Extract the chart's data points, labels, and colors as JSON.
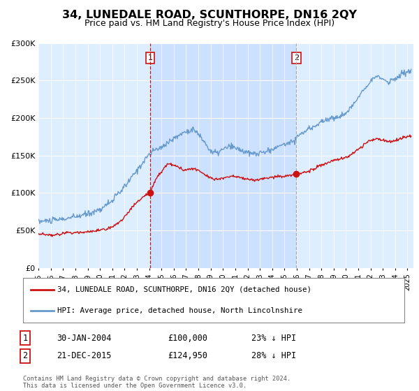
{
  "title": "34, LUNEDALE ROAD, SCUNTHORPE, DN16 2QY",
  "subtitle": "Price paid vs. HM Land Registry's House Price Index (HPI)",
  "hpi_color": "#6699cc",
  "price_color": "#cc1111",
  "marker_color": "#cc1111",
  "sale1_vline_color": "#cc1111",
  "sale2_vline_color": "#aaaaaa",
  "plot_bg": "#ddeeff",
  "shade_color": "#cce0ff",
  "ylim": [
    0,
    300000
  ],
  "yticks": [
    0,
    50000,
    100000,
    150000,
    200000,
    250000,
    300000
  ],
  "ytick_labels": [
    "£0",
    "£50K",
    "£100K",
    "£150K",
    "£200K",
    "£250K",
    "£300K"
  ],
  "sale1_year": 2004.08,
  "sale1_price": 100000,
  "sale1_label": "1",
  "sale2_year": 2015.97,
  "sale2_price": 124950,
  "sale2_label": "2",
  "legend_line1": "34, LUNEDALE ROAD, SCUNTHORPE, DN16 2QY (detached house)",
  "legend_line2": "HPI: Average price, detached house, North Lincolnshire",
  "table_rows": [
    [
      "1",
      "30-JAN-2004",
      "£100,000",
      "23% ↓ HPI"
    ],
    [
      "2",
      "21-DEC-2015",
      "£124,950",
      "28% ↓ HPI"
    ]
  ],
  "footer": "Contains HM Land Registry data © Crown copyright and database right 2024.\nThis data is licensed under the Open Government Licence v3.0.",
  "xstart": 1995.0,
  "xend": 2025.5
}
